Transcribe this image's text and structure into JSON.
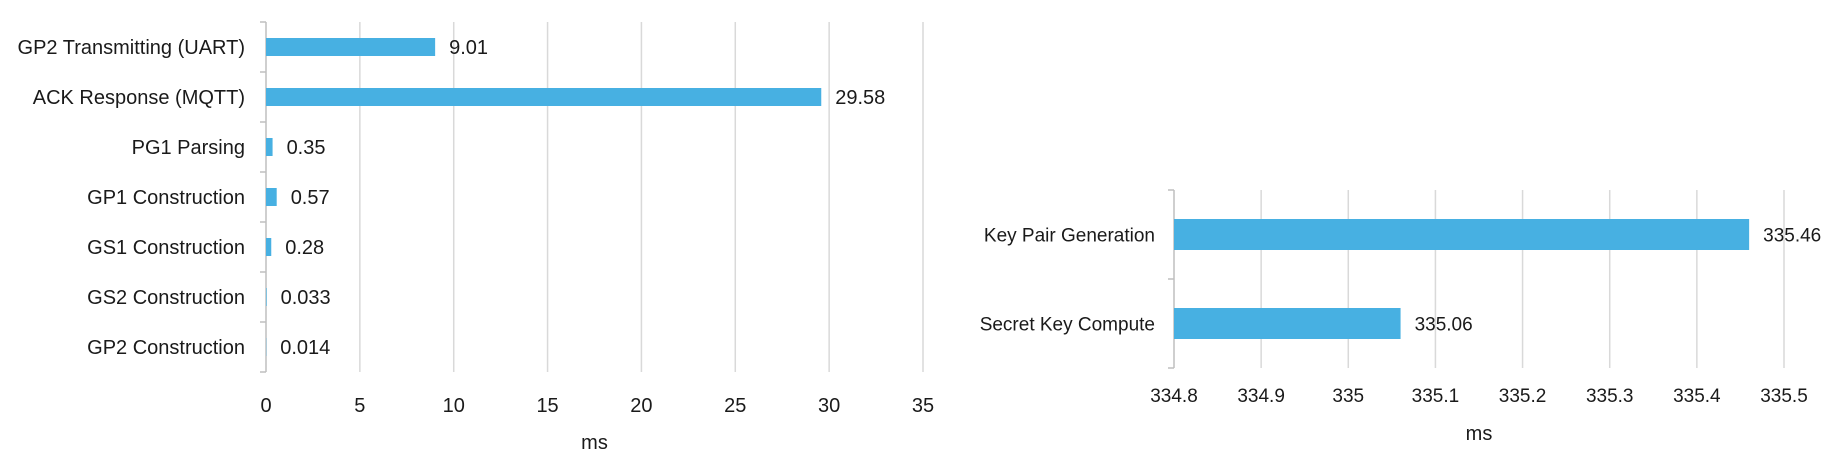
{
  "colors": {
    "bar": "#47B0E2",
    "grid": "#d9d9d9",
    "axis": "#bfbfbf",
    "text": "#1a1a1a"
  },
  "chart_data": [
    {
      "type": "bar",
      "orientation": "horizontal",
      "categories": [
        "GP2 Transmitting (UART)",
        "ACK Response (MQTT)",
        "PG1 Parsing",
        "GP1 Construction",
        "GS1 Construction",
        "GS2 Construction",
        "GP2 Construction"
      ],
      "values": [
        9.01,
        29.58,
        0.35,
        0.57,
        0.28,
        0.033,
        0.014
      ],
      "value_labels": [
        "9.01",
        "29.58",
        "0.35",
        "0.57",
        "0.28",
        "0.033",
        "0.014"
      ],
      "xlabel": "ms",
      "xlim": [
        0,
        35
      ],
      "xticks": [
        0,
        5,
        10,
        15,
        20,
        25,
        30,
        35
      ],
      "grid": true
    },
    {
      "type": "bar",
      "orientation": "horizontal",
      "categories": [
        "Key Pair Generation",
        "Secret Key Compute"
      ],
      "values": [
        335.46,
        335.06
      ],
      "value_labels": [
        "335.46",
        "335.06"
      ],
      "xlabel": "ms",
      "xlim": [
        334.8,
        335.5
      ],
      "xticks": [
        "334.8",
        "334.9",
        "335",
        "335.1",
        "335.2",
        "335.3",
        "335.4",
        "335.5"
      ],
      "grid": true
    }
  ]
}
